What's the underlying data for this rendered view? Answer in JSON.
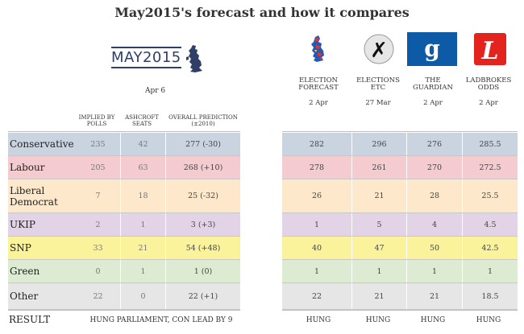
{
  "title": "May2015's forecast and how it compares",
  "brand": {
    "logo_text": "MAY2015",
    "date": "Apr 6"
  },
  "columns": {
    "implied": "IMPLIED BY POLLS",
    "ashcroft": "ASHCROFT SEATS",
    "overall": "OVERALL PREDICTION",
    "overall_sub": "(±2010)"
  },
  "sources": [
    {
      "name_line1": "ELECTION",
      "name_line2": "FORECAST",
      "date": "2 Apr"
    },
    {
      "name_line1": "ELECTIONS",
      "name_line2": "ETC",
      "date": "27 Mar"
    },
    {
      "name_line1": "THE",
      "name_line2": "GUARDIAN",
      "date": "2 Apr"
    },
    {
      "name_line1": "LADBROKES",
      "name_line2": "ODDS",
      "date": "2 Apr"
    }
  ],
  "logos": {
    "guardian_letter": "g",
    "elections_etc_mark": "✗",
    "ladbrokes_mark": "L"
  },
  "parties": [
    {
      "label_line1": "Conservative",
      "label_line2": "",
      "implied": "235",
      "ashcroft": "42",
      "overall": "277 (-30)",
      "s1": "282",
      "s2": "296",
      "s3": "276",
      "s4": "285.5",
      "color": "#c9d4e0"
    },
    {
      "label_line1": "Labour",
      "label_line2": "",
      "implied": "205",
      "ashcroft": "63",
      "overall": "268 (+10)",
      "s1": "278",
      "s2": "261",
      "s3": "270",
      "s4": "272.5",
      "color": "#f4ccd0"
    },
    {
      "label_line1": "Liberal",
      "label_line2": "Democrat",
      "implied": "7",
      "ashcroft": "18",
      "overall": "25 (-32)",
      "s1": "26",
      "s2": "21",
      "s3": "28",
      "s4": "25.5",
      "color": "#fde8cc"
    },
    {
      "label_line1": "UKIP",
      "label_line2": "",
      "implied": "2",
      "ashcroft": "1",
      "overall": "3 (+3)",
      "s1": "1",
      "s2": "5",
      "s3": "4",
      "s4": "4.5",
      "color": "#e3d3e6"
    },
    {
      "label_line1": "SNP",
      "label_line2": "",
      "implied": "33",
      "ashcroft": "21",
      "overall": "54 (+48)",
      "s1": "40",
      "s2": "47",
      "s3": "50",
      "s4": "42.5",
      "color": "#fbf39b"
    },
    {
      "label_line1": "Green",
      "label_line2": "",
      "implied": "0",
      "ashcroft": "1",
      "overall": "1 (0)",
      "s1": "1",
      "s2": "1",
      "s3": "1",
      "s4": "1",
      "color": "#ddebd2"
    },
    {
      "label_line1": "Other",
      "label_line2": "",
      "implied": "22",
      "ashcroft": "0",
      "overall": "22 (+1)",
      "s1": "22",
      "s2": "21",
      "s3": "21",
      "s4": "18.5",
      "color": "#e6e6e6"
    }
  ],
  "result": {
    "label": "RESULT",
    "main": "HUNG PARLIAMENT, CON LEAD BY 9",
    "s1": "HUNG",
    "s2": "HUNG",
    "s3": "HUNG",
    "s4": "HUNG"
  }
}
